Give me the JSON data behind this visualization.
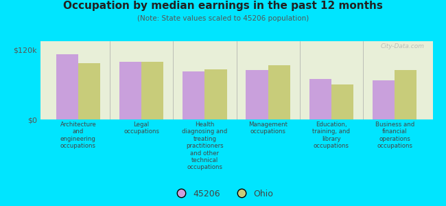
{
  "title": "Occupation by median earnings in the past 12 months",
  "subtitle": "(Note: State values scaled to 45206 population)",
  "background_outer": "#00e5ff",
  "background_inner": "#e8efd8",
  "categories": [
    "Architecture\nand\nengineering\noccupations",
    "Legal\noccupations",
    "Health\ndiagnosing and\ntreating\npractitioners\nand other\ntechnical\noccupations",
    "Management\noccupations",
    "Education,\ntraining, and\nlibrary\noccupations",
    "Business and\nfinancial\noperations\noccupations"
  ],
  "values_45206": [
    113000,
    100000,
    83000,
    85000,
    70000,
    68000
  ],
  "values_ohio": [
    97000,
    100000,
    87000,
    93000,
    60000,
    85000
  ],
  "color_45206": "#c9a0dc",
  "color_ohio": "#c8cc7a",
  "yticks": [
    0,
    120000
  ],
  "ytick_labels": [
    "$0",
    "$120k"
  ],
  "ylim": [
    0,
    135000
  ],
  "legend_45206": "45206",
  "legend_ohio": "Ohio",
  "bar_width": 0.35,
  "watermark": "City-Data.com"
}
